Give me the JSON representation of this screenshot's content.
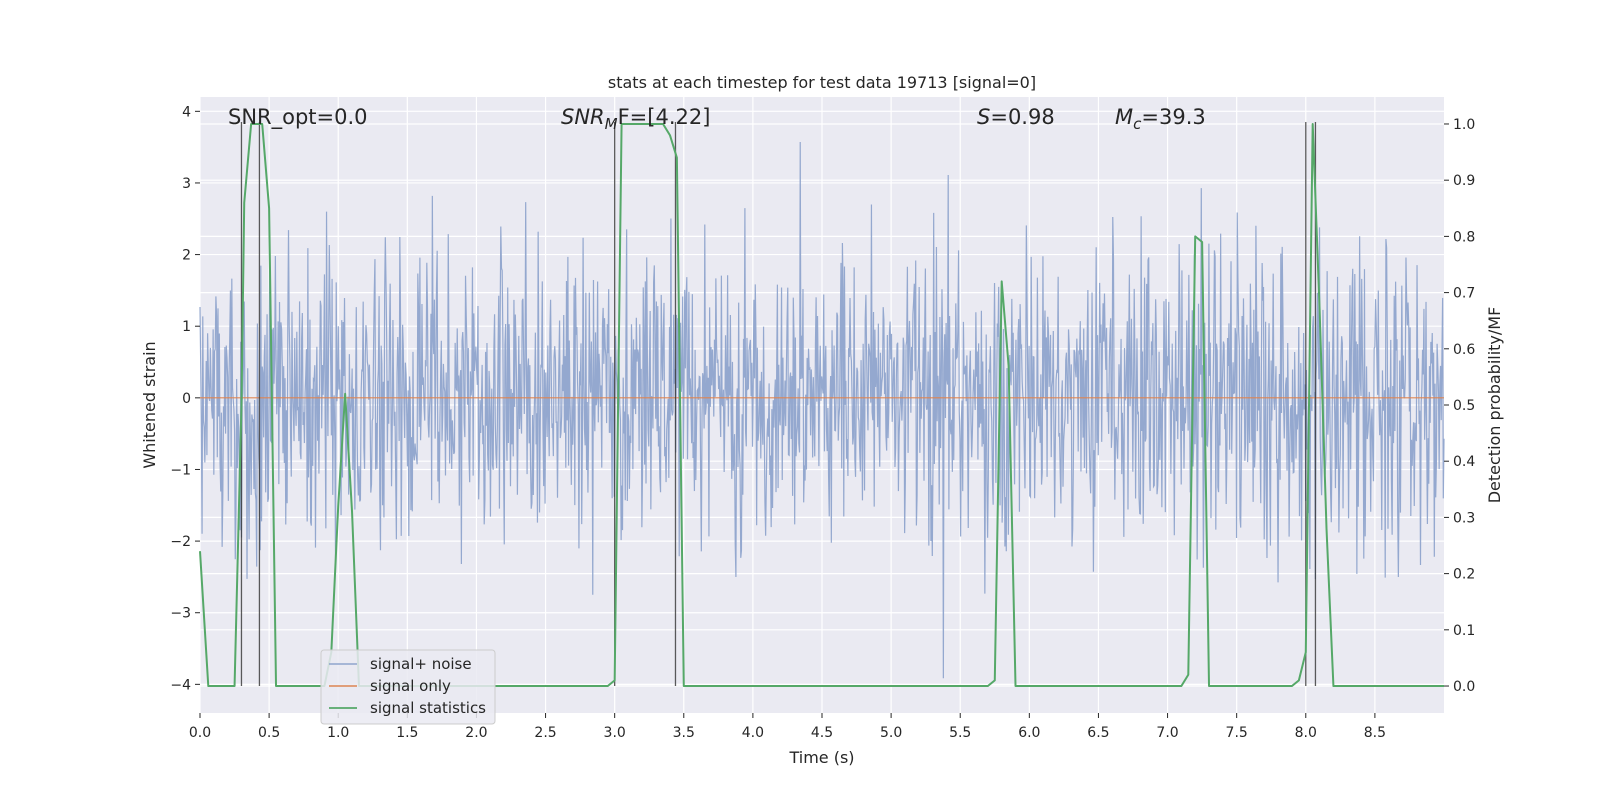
{
  "chart_data": {
    "type": "line",
    "title": "stats at each timestep for test data 19713 [signal=0]",
    "xlabel": "Time (s)",
    "ylabel": "Whitened strain",
    "ylabel_right": "Detection probability/MF",
    "xlim": [
      0.0,
      9.0
    ],
    "ylim": [
      -4.4,
      4.2
    ],
    "ylim_right": [
      -0.048,
      1.048
    ],
    "x_ticks": [
      "0.0",
      "0.5",
      "1.0",
      "1.5",
      "2.0",
      "2.5",
      "3.0",
      "3.5",
      "4.0",
      "4.5",
      "5.0",
      "5.5",
      "6.0",
      "6.5",
      "7.0",
      "7.5",
      "8.0",
      "8.5"
    ],
    "x_tick_values": [
      0,
      0.5,
      1,
      1.5,
      2,
      2.5,
      3,
      3.5,
      4,
      4.5,
      5,
      5.5,
      6,
      6.5,
      7,
      7.5,
      8,
      8.5
    ],
    "y_ticks": [
      "4",
      "3",
      "2",
      "1",
      "0",
      "−1",
      "−2",
      "−3",
      "−4"
    ],
    "y_tick_values": [
      4,
      3,
      2,
      1,
      0,
      -1,
      -2,
      -3,
      -4
    ],
    "y2_ticks": [
      "1.0",
      "0.9",
      "0.8",
      "0.7",
      "0.6",
      "0.5",
      "0.4",
      "0.3",
      "0.2",
      "0.1",
      "0.0"
    ],
    "y2_tick_values": [
      1.0,
      0.9,
      0.8,
      0.7,
      0.6,
      0.5,
      0.4,
      0.3,
      0.2,
      0.1,
      0.0
    ],
    "annotations": {
      "snr_opt": "SNR_opt=0.0",
      "snr_mf_main": "SNR",
      "snr_mf_sub": "M",
      "snr_mf_rest": "F=[4.22]",
      "s_main": "S",
      "s_rest": "=0.98",
      "mc_main": "M",
      "mc_sub": "c",
      "mc_rest": "=39.3"
    },
    "legend": {
      "position": "lower-left",
      "entries": [
        "signal+ noise",
        "signal only",
        "signal statistics"
      ]
    },
    "colors": {
      "noise": "#8fa4cc",
      "signal": "#dd8452",
      "stats": "#55a868",
      "vline": "#333333",
      "background": "#eaeaf2",
      "grid": "#ffffff"
    },
    "series": [
      {
        "name": "signal+ noise",
        "description": "whitened strain noise, std ~1, max |amplitude| ~4",
        "seed": 19713,
        "n_samples": 1800,
        "std": 1.0,
        "range": [
          -4.0,
          4.0
        ]
      },
      {
        "name": "signal only",
        "x": [
          0.0,
          9.0
        ],
        "y": [
          0.0,
          0.0
        ]
      },
      {
        "name": "signal statistics",
        "axis": "right",
        "x": [
          0.0,
          0.06,
          0.1,
          0.2,
          0.25,
          0.3,
          0.32,
          0.37,
          0.4,
          0.45,
          0.5,
          0.55,
          0.6,
          0.9,
          0.95,
          1.0,
          1.05,
          1.1,
          1.15,
          2.95,
          3.0,
          3.05,
          3.1,
          3.35,
          3.4,
          3.45,
          3.5,
          5.7,
          5.75,
          5.8,
          5.85,
          5.9,
          5.95,
          6.0,
          7.1,
          7.15,
          7.2,
          7.25,
          7.3,
          7.35,
          7.9,
          7.95,
          8.0,
          8.05,
          8.1,
          8.15,
          8.2,
          8.5,
          9.0
        ],
        "y": [
          0.24,
          0.0,
          0.0,
          0.0,
          0.0,
          0.5,
          0.86,
          1.0,
          1.0,
          1.0,
          0.85,
          0.0,
          0.0,
          0.0,
          0.06,
          0.32,
          0.52,
          0.31,
          0.0,
          0.0,
          0.01,
          1.0,
          1.0,
          1.0,
          0.98,
          0.94,
          0.0,
          0.0,
          0.01,
          0.72,
          0.57,
          0.0,
          0.0,
          0.0,
          0.0,
          0.02,
          0.8,
          0.79,
          0.0,
          0.0,
          0.0,
          0.01,
          0.06,
          1.0,
          0.67,
          0.28,
          0.0,
          0.0,
          0.0
        ]
      }
    ],
    "vlines": [
      0.3,
      0.43,
      3.0,
      3.44,
      8.0,
      8.07
    ]
  }
}
